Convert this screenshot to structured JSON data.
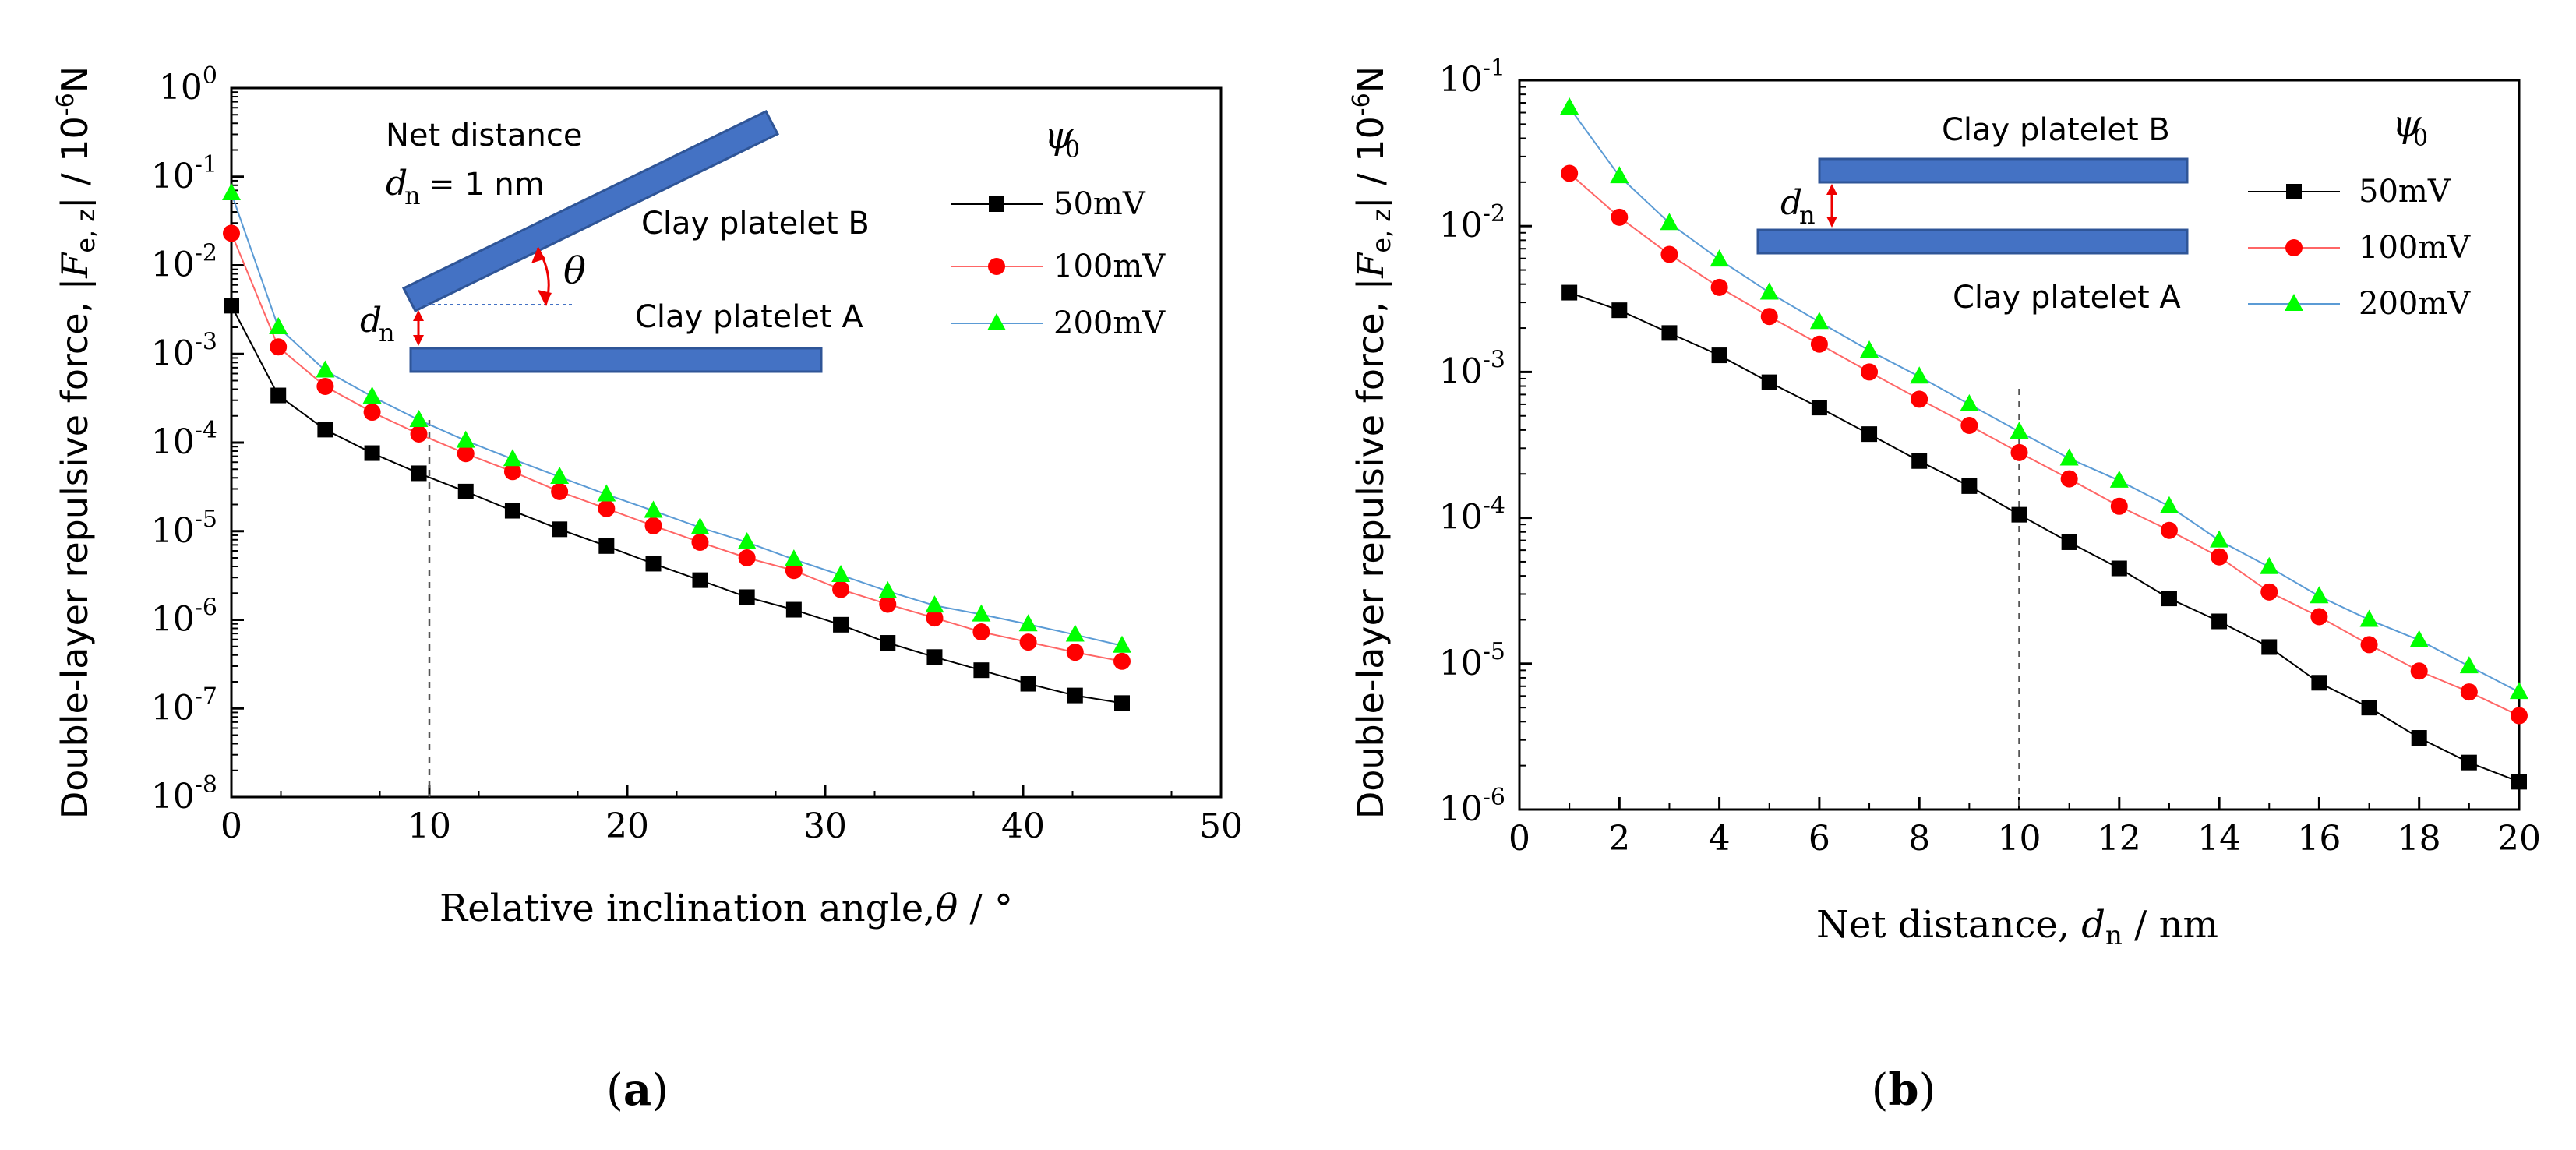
{
  "chart_data": [
    {
      "type": "line",
      "title": "",
      "panel_label": "(a)",
      "xlabel": "Relative inclination angle,θ / °",
      "ylabel": "Double-layer repulsive force, |Fe,z| / 10⁻⁶N",
      "xlim": [
        0,
        50
      ],
      "ylim_log10": [
        -8,
        0
      ],
      "yscale": "log",
      "x_ticks": [
        "0",
        "10",
        "20",
        "30",
        "40",
        "50"
      ],
      "y_ticks": [
        [
          "10",
          "0"
        ],
        [
          "10",
          "-1"
        ],
        [
          "10",
          "-2"
        ],
        [
          "10",
          "-3"
        ],
        [
          "10",
          "-4"
        ],
        [
          "10",
          "-5"
        ],
        [
          "10",
          "-6"
        ],
        [
          "10",
          "-7"
        ],
        [
          "10",
          "-8"
        ]
      ],
      "legend_title": "ψ0",
      "reference_line_x": 10,
      "x": [
        0,
        2.37,
        4.74,
        7.11,
        9.47,
        11.84,
        14.21,
        16.58,
        18.95,
        21.32,
        23.68,
        26.05,
        28.42,
        30.79,
        33.16,
        35.53,
        37.89,
        40.26,
        42.63,
        45
      ],
      "series": [
        {
          "name": "50mV",
          "marker": "square",
          "color": "#000000",
          "line_color": "#000000",
          "values": [
            0.0035,
            0.00034,
            0.00014,
            7.6e-05,
            4.5e-05,
            2.8e-05,
            1.7e-05,
            1.05e-05,
            6.8e-06,
            4.3e-06,
            2.8e-06,
            1.8e-06,
            1.3e-06,
            8.8e-07,
            5.5e-07,
            3.8e-07,
            2.7e-07,
            1.9e-07,
            1.4e-07,
            1.15e-07
          ]
        },
        {
          "name": "100mV",
          "marker": "circle",
          "color": "#ff0000",
          "line_color": "#ff6666",
          "values": [
            0.023,
            0.0012,
            0.00043,
            0.00022,
            0.000125,
            7.5e-05,
            4.7e-05,
            2.8e-05,
            1.8e-05,
            1.15e-05,
            7.5e-06,
            5e-06,
            3.6e-06,
            2.2e-06,
            1.5e-06,
            1.05e-06,
            7.3e-07,
            5.6e-07,
            4.3e-07,
            3.4e-07
          ]
        },
        {
          "name": "200mV",
          "marker": "triangle",
          "color": "#00ff00",
          "line_color": "#5b9bd5",
          "values": [
            0.065,
            0.002,
            0.00065,
            0.00033,
            0.00018,
            0.000105,
            6.5e-05,
            4.1e-05,
            2.6e-05,
            1.7e-05,
            1.1e-05,
            7.5e-06,
            4.8e-06,
            3.2e-06,
            2.1e-06,
            1.45e-06,
            1.15e-06,
            8.9e-07,
            6.8e-07,
            5.1e-07
          ]
        }
      ],
      "inset": {
        "net_distance_text": "Net distance",
        "dn_equation": "= 1 nm",
        "platelet_b": "Clay platelet B",
        "platelet_a": "Clay platelet A",
        "theta_symbol": "θ",
        "dn_symbol": "d",
        "dn_subscript": "n"
      }
    },
    {
      "type": "line",
      "title": "",
      "panel_label": "(b)",
      "xlabel": "Net distance, dn / nm",
      "ylabel": "Double-layer repulsive force, |Fe,z| / 10⁻⁶N",
      "xlim": [
        0,
        20
      ],
      "ylim_log10": [
        -6,
        -1
      ],
      "yscale": "log",
      "x_ticks": [
        "0",
        "2",
        "4",
        "6",
        "8",
        "10",
        "12",
        "14",
        "16",
        "18",
        "20"
      ],
      "y_ticks": [
        [
          "10",
          "-1"
        ],
        [
          "10",
          "-2"
        ],
        [
          "10",
          "-3"
        ],
        [
          "10",
          "-4"
        ],
        [
          "10",
          "-5"
        ],
        [
          "10",
          "-6"
        ]
      ],
      "legend_title": "ψ0",
      "reference_line_x": 10,
      "x": [
        1,
        2,
        3,
        4,
        5,
        6,
        7,
        8,
        9,
        10,
        11,
        12,
        13,
        14,
        15,
        16,
        17,
        18,
        19,
        20
      ],
      "series": [
        {
          "name": "50mV",
          "marker": "square",
          "color": "#000000",
          "line_color": "#000000",
          "values": [
            0.0035,
            0.00265,
            0.00185,
            0.0013,
            0.00085,
            0.00057,
            0.000375,
            0.000245,
            0.000165,
            0.000105,
            6.8e-05,
            4.5e-05,
            2.8e-05,
            1.95e-05,
            1.3e-05,
            7.4e-06,
            5e-06,
            3.1e-06,
            2.1e-06,
            1.55e-06
          ]
        },
        {
          "name": "100mV",
          "marker": "circle",
          "color": "#ff0000",
          "line_color": "#ff6666",
          "values": [
            0.023,
            0.0115,
            0.0064,
            0.0038,
            0.0024,
            0.00155,
            0.001,
            0.00065,
            0.00043,
            0.00028,
            0.000185,
            0.00012,
            8.2e-05,
            5.4e-05,
            3.1e-05,
            2.1e-05,
            1.35e-05,
            8.9e-06,
            6.4e-06,
            4.4e-06
          ]
        },
        {
          "name": "200mV",
          "marker": "triangle",
          "color": "#00ff00",
          "line_color": "#5b9bd5",
          "values": [
            0.065,
            0.022,
            0.0105,
            0.0059,
            0.0035,
            0.0022,
            0.0014,
            0.00093,
            0.0006,
            0.00039,
            0.000255,
            0.00018,
            0.00012,
            7e-05,
            4.6e-05,
            2.9e-05,
            2e-05,
            1.45e-05,
            9.6e-06,
            6.4e-06
          ]
        }
      ],
      "inset": {
        "platelet_b": "Clay platelet B",
        "platelet_a": "Clay platelet A",
        "dn_symbol": "d",
        "dn_subscript": "n"
      }
    }
  ]
}
